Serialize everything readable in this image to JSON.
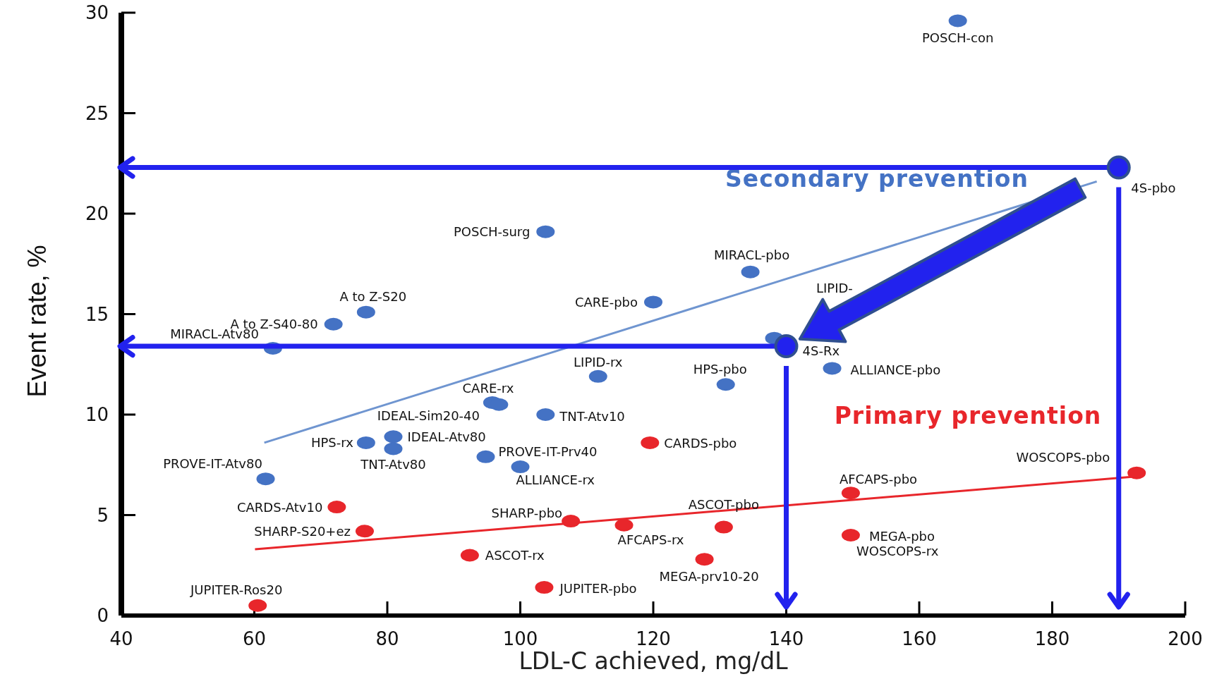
{
  "chart_data": {
    "type": "scatter",
    "xlabel": "LDL-C achieved, mg/dL",
    "ylabel": "Event rate, %",
    "xlim": [
      40,
      200
    ],
    "xticks": [
      40,
      60,
      80,
      100,
      120,
      140,
      160,
      180,
      200
    ],
    "ylim": [
      0,
      30
    ],
    "yticks": [
      0,
      5,
      10,
      15,
      20,
      25,
      30
    ],
    "series": [
      {
        "name": "Secondary prevention",
        "color": "#4472c4",
        "x": [
          165.8,
          103.8,
          134.6,
          120,
          76.8,
          71.9,
          62.8,
          138.2,
          111.7,
          130.9,
          146.9,
          95.8,
          96.8,
          103.8,
          80.9,
          76.8,
          80.9,
          94.8,
          100,
          61.7
        ],
        "values": [
          29.6,
          19.1,
          17.1,
          15.6,
          15.1,
          14.5,
          13.3,
          13.8,
          11.9,
          11.5,
          12.3,
          10.6,
          10.5,
          10,
          8.9,
          8.6,
          8.3,
          7.9,
          7.4,
          6.8
        ]
      },
      {
        "name": "Primary prevention",
        "color": "#e8262b",
        "x": [
          192.7,
          119.5,
          149.7,
          72.4,
          107.6,
          115.6,
          130.6,
          76.6,
          149.7,
          92.4,
          127.7,
          103.6,
          60.5
        ],
        "values": [
          7.1,
          8.6,
          6.1,
          5.4,
          4.7,
          4.5,
          4.4,
          4.2,
          4,
          3,
          2.8,
          1.4,
          0.5
        ]
      },
      {
        "type": "line",
        "color": "#6f95d0",
        "x": [
          61.5,
          186.7
        ],
        "values": [
          8.6,
          21.6
        ]
      },
      {
        "type": "line",
        "color": "#e8262b",
        "x": [
          60.1,
          192
        ],
        "values": [
          3.3,
          6.9
        ]
      }
    ],
    "annotations": [
      {
        "text": "POSCH-con",
        "x": 165.8,
        "y": 29.6
      },
      {
        "text": "4S-pbo",
        "x": 189.1,
        "y": 22.2
      },
      {
        "text": "POSCH-surg",
        "x": 103.8,
        "y": 19.1
      },
      {
        "text": "MIRACL-pbo",
        "x": 134.6,
        "y": 17.1
      },
      "LIPID-",
      {
        "text": "CARE-pbo",
        "x": 120,
        "y": 15.6
      },
      {
        "text": "A to Z-S20",
        "x": 76.8,
        "y": 15.1
      },
      {
        "text": "A to Z-S40-80",
        "x": 71.9,
        "y": 14.5
      },
      {
        "text": "MIRACL-Atv80",
        "x": 62.8,
        "y": 13.3
      },
      {
        "text": "4S-Rx",
        "x": 138.2,
        "y": 13.8
      },
      {
        "text": "LIPID-rx",
        "x": 111.7,
        "y": 11.9
      },
      {
        "text": "HPS-pbo",
        "x": 130.9,
        "y": 11.5
      },
      {
        "text": "ALLIANCE-pbo",
        "x": 146.9,
        "y": 12.3
      },
      {
        "text": "CARE-rx",
        "x": 95.8,
        "y": 10.6
      },
      {
        "text": "IDEAL-Sim20-40",
        "x": 96.8,
        "y": 10.5
      },
      {
        "text": "TNT-Atv10",
        "x": 103.8,
        "y": 10
      },
      {
        "text": "IDEAL-Atv80",
        "x": 80.9,
        "y": 8.9
      },
      {
        "text": "HPS-rx",
        "x": 76.8,
        "y": 8.6
      },
      {
        "text": "TNT-Atv80",
        "x": 80.9,
        "y": 8.3
      },
      {
        "text": "PROVE-IT-Prv40",
        "x": 94.8,
        "y": 7.9
      },
      {
        "text": "ALLIANCE-rx",
        "x": 100,
        "y": 7.4
      },
      {
        "text": "PROVE-IT-Atv80",
        "x": 61.7,
        "y": 6.8
      },
      {
        "text": "WOSCOPS-pbo",
        "x": 192.7,
        "y": 7.1
      },
      {
        "text": "CARDS-pbo",
        "x": 119.5,
        "y": 8.6
      },
      {
        "text": "AFCAPS-pbo",
        "x": 149.7,
        "y": 6.1
      },
      {
        "text": "CARDS-Atv10",
        "x": 72.4,
        "y": 5.4
      },
      {
        "text": "SHARP-pbo",
        "x": 107.6,
        "y": 4.7
      },
      {
        "text": "AFCAPS-rx",
        "x": 115.6,
        "y": 4.5
      },
      {
        "text": "ASCOT-pbo",
        "x": 130.6,
        "y": 4.4
      },
      {
        "text": "SHARP-S20+ez",
        "x": 76.6,
        "y": 4.2
      },
      {
        "text": "MEGA-pbo",
        "x": 149.7,
        "y": 4
      },
      {
        "text": "WOSCOPS-rx",
        "x": 149.7,
        "y": 4
      },
      {
        "text": "ASCOT-rx",
        "x": 92.4,
        "y": 3
      },
      {
        "text": "MEGA-prv10-20",
        "x": 127.7,
        "y": 2.8
      },
      {
        "text": "JUPITER-pbo",
        "x": 103.6,
        "y": 1.4
      },
      {
        "text": "JUPITER-Ros20",
        "x": 60.5,
        "y": 0.5
      }
    ],
    "ref_lines": [
      {
        "axis": "y",
        "value": 22.3,
        "color": "#2222ee"
      },
      {
        "axis": "x",
        "value": 190,
        "color": "#2222ee"
      },
      {
        "axis": "y",
        "value": 13.4,
        "color": "#2222ee"
      },
      {
        "axis": "x",
        "value": 140,
        "color": "#2222ee"
      }
    ]
  }
}
